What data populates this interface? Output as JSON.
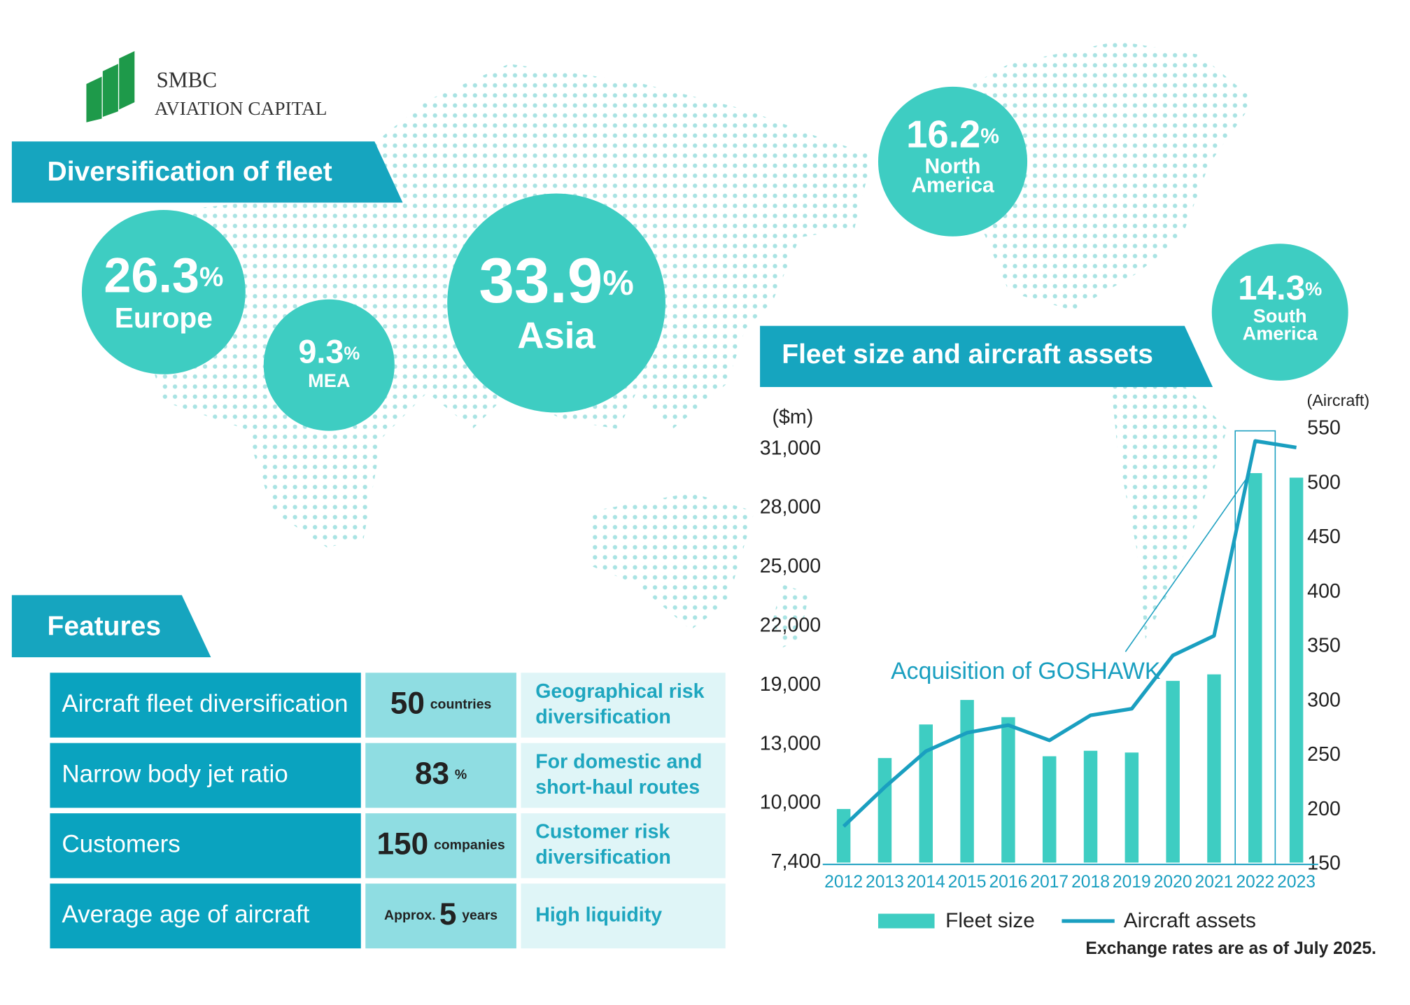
{
  "logo": {
    "line1": "SMBC",
    "line2": "AVIATION CAPITAL"
  },
  "diversification": {
    "title": "Diversification of fleet",
    "regions": [
      {
        "value": 26.3,
        "unit": "%",
        "name": [
          "Europe"
        ]
      },
      {
        "value": 9.3,
        "unit": "%",
        "name": [
          "MEA"
        ]
      },
      {
        "value": 33.9,
        "unit": "%",
        "name": [
          "Asia"
        ]
      },
      {
        "value": 16.2,
        "unit": "%",
        "name": [
          "North",
          "America"
        ]
      },
      {
        "value": 14.3,
        "unit": "%",
        "name": [
          "South",
          "America"
        ]
      }
    ]
  },
  "features": {
    "title": "Features",
    "rows": [
      {
        "label": "Aircraft fleet diversification",
        "value": 50,
        "unit": "countries",
        "note": [
          "Geographical risk",
          "diversification"
        ]
      },
      {
        "label": "Narrow body jet ratio",
        "value": 83,
        "unit": "%",
        "note": [
          "For domestic and",
          "short-haul routes"
        ]
      },
      {
        "label": "Customers",
        "value": 150,
        "unit": "companies",
        "note": [
          "Customer risk",
          "diversification"
        ]
      },
      {
        "label": "Average age of aircraft",
        "prefix": "Approx.",
        "value": 5,
        "unit": "years",
        "note": [
          "High liquidity"
        ]
      }
    ]
  },
  "chart_data": {
    "type": "bar_line",
    "title": "Fleet size and aircraft assets",
    "ylabel": "($m)",
    "y2label": "(Aircraft)",
    "categories": [
      "2012",
      "2013",
      "2014",
      "2015",
      "2016",
      "2017",
      "2018",
      "2019",
      "2020",
      "2021",
      "2022",
      "2023"
    ],
    "series": [
      {
        "name": "Fleet size",
        "type": "bar",
        "color": "#3ecdc2",
        "values": [
          9760,
          12310,
          15030,
          17520,
          15770,
          12400,
          12680,
          12590,
          19230,
          19560,
          29780,
          29550
        ]
      },
      {
        "name": "Aircraft assets",
        "type": "line",
        "axis": "y2",
        "color": "#1a9fc0",
        "values": [
          185,
          221,
          254,
          271,
          278,
          264,
          287,
          293,
          342,
          360,
          539,
          533
        ]
      }
    ],
    "ylim": [
      7400,
      31000
    ],
    "yticks": [
      {
        "value": 7400,
        "label": "7,400"
      },
      {
        "value": 10000,
        "label": "10,000"
      },
      {
        "value": 13000,
        "label": "13,000"
      },
      {
        "value": 19000,
        "label": "19,000"
      },
      {
        "value": 22000,
        "label": "22,000"
      },
      {
        "value": 25000,
        "label": "25,000"
      },
      {
        "value": 28000,
        "label": "28,000"
      },
      {
        "value": 31000,
        "label": "31,000"
      }
    ],
    "y2lim": [
      150,
      550
    ],
    "y2ticks": [
      150,
      200,
      250,
      300,
      350,
      400,
      450,
      500,
      550
    ],
    "annotation": {
      "text": "Acquisition of GOSHAWK",
      "category": "2022"
    },
    "note": "Exchange rates are as of July 2025."
  }
}
